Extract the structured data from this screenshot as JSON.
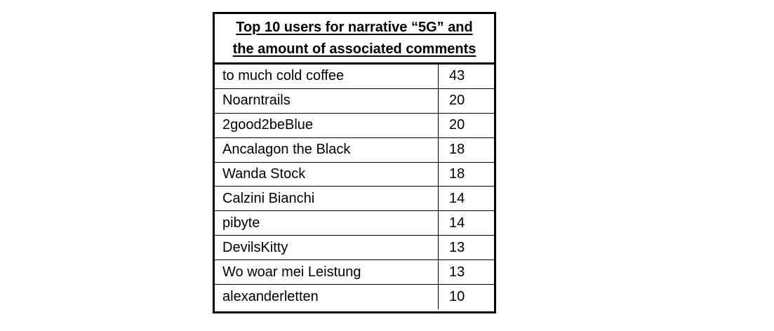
{
  "table": {
    "title_line_1": "Top 10 users for narrative “5G” and",
    "title_line_2": "the amount of associated comments",
    "rows": [
      {
        "user": "to much cold coffee",
        "comments": "43"
      },
      {
        "user": "Noarntrails",
        "comments": "20"
      },
      {
        "user": "2good2beBlue",
        "comments": "20"
      },
      {
        "user": "Ancalagon the Black",
        "comments": "18"
      },
      {
        "user": "Wanda Stock",
        "comments": "18"
      },
      {
        "user": "Calzini Bianchi",
        "comments": "14"
      },
      {
        "user": "pibyte",
        "comments": "14"
      },
      {
        "user": "DevilsKitty",
        "comments": "13"
      },
      {
        "user": "Wo woar mei Leistung",
        "comments": "13"
      },
      {
        "user": "alexanderletten",
        "comments": "10"
      }
    ]
  }
}
